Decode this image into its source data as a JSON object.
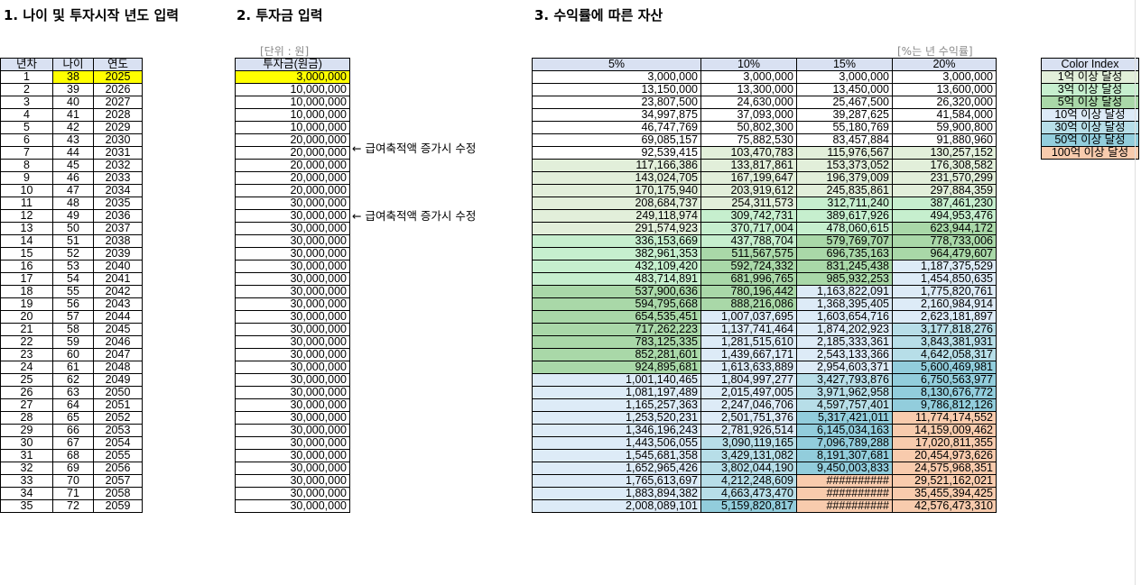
{
  "titles": {
    "s1": "1. 나이 및 투자시작 년도 입력",
    "s2": "2. 투자금 입력",
    "s3": "3. 수익률에 따른 자산"
  },
  "units": {
    "won": "[단위 : 원]",
    "rate": "[%는 년 수익률]"
  },
  "age_table": {
    "headers": [
      "년차",
      "나이",
      "연도"
    ],
    "rows": [
      [
        "1",
        "38",
        "2025"
      ],
      [
        "2",
        "39",
        "2026"
      ],
      [
        "3",
        "40",
        "2027"
      ],
      [
        "4",
        "41",
        "2028"
      ],
      [
        "5",
        "42",
        "2029"
      ],
      [
        "6",
        "43",
        "2030"
      ],
      [
        "7",
        "44",
        "2031"
      ],
      [
        "8",
        "45",
        "2032"
      ],
      [
        "9",
        "46",
        "2033"
      ],
      [
        "10",
        "47",
        "2034"
      ],
      [
        "11",
        "48",
        "2035"
      ],
      [
        "12",
        "49",
        "2036"
      ],
      [
        "13",
        "50",
        "2037"
      ],
      [
        "14",
        "51",
        "2038"
      ],
      [
        "15",
        "52",
        "2039"
      ],
      [
        "16",
        "53",
        "2040"
      ],
      [
        "17",
        "54",
        "2041"
      ],
      [
        "18",
        "55",
        "2042"
      ],
      [
        "19",
        "56",
        "2043"
      ],
      [
        "20",
        "57",
        "2044"
      ],
      [
        "21",
        "58",
        "2045"
      ],
      [
        "22",
        "59",
        "2046"
      ],
      [
        "23",
        "60",
        "2047"
      ],
      [
        "24",
        "61",
        "2048"
      ],
      [
        "25",
        "62",
        "2049"
      ],
      [
        "26",
        "63",
        "2050"
      ],
      [
        "27",
        "64",
        "2051"
      ],
      [
        "28",
        "65",
        "2052"
      ],
      [
        "29",
        "66",
        "2053"
      ],
      [
        "30",
        "67",
        "2054"
      ],
      [
        "31",
        "68",
        "2055"
      ],
      [
        "32",
        "69",
        "2056"
      ],
      [
        "33",
        "70",
        "2057"
      ],
      [
        "34",
        "71",
        "2058"
      ],
      [
        "35",
        "72",
        "2059"
      ]
    ]
  },
  "investment_table": {
    "header": "투자금(원금)",
    "values": [
      "3,000,000",
      "10,000,000",
      "10,000,000",
      "10,000,000",
      "10,000,000",
      "20,000,000",
      "20,000,000",
      "20,000,000",
      "20,000,000",
      "20,000,000",
      "30,000,000",
      "30,000,000",
      "30,000,000",
      "30,000,000",
      "30,000,000",
      "30,000,000",
      "30,000,000",
      "30,000,000",
      "30,000,000",
      "30,000,000",
      "30,000,000",
      "30,000,000",
      "30,000,000",
      "30,000,000",
      "30,000,000",
      "30,000,000",
      "30,000,000",
      "30,000,000",
      "30,000,000",
      "30,000,000",
      "30,000,000",
      "30,000,000",
      "30,000,000",
      "30,000,000",
      "30,000,000"
    ],
    "notes": [
      {
        "row": 6,
        "text": "← 급여축적액 증가시 수정"
      },
      {
        "row": 11,
        "text": "← 급여축적액 증가시 수정"
      }
    ]
  },
  "returns_table": {
    "headers": [
      "5%",
      "10%",
      "15%",
      "20%"
    ],
    "rows": [
      [
        "3,000,000",
        "3,000,000",
        "3,000,000",
        "3,000,000"
      ],
      [
        "13,150,000",
        "13,300,000",
        "13,450,000",
        "13,600,000"
      ],
      [
        "23,807,500",
        "24,630,000",
        "25,467,500",
        "26,320,000"
      ],
      [
        "34,997,875",
        "37,093,000",
        "39,287,625",
        "41,584,000"
      ],
      [
        "46,747,769",
        "50,802,300",
        "55,180,769",
        "59,900,800"
      ],
      [
        "69,085,157",
        "75,882,530",
        "83,457,884",
        "91,880,960"
      ],
      [
        "92,539,415",
        "103,470,783",
        "115,976,567",
        "130,257,152"
      ],
      [
        "117,166,386",
        "133,817,861",
        "153,373,052",
        "176,308,582"
      ],
      [
        "143,024,705",
        "167,199,647",
        "196,379,009",
        "231,570,299"
      ],
      [
        "170,175,940",
        "203,919,612",
        "245,835,861",
        "297,884,359"
      ],
      [
        "208,684,737",
        "254,311,573",
        "312,711,240",
        "387,461,230"
      ],
      [
        "249,118,974",
        "309,742,731",
        "389,617,926",
        "494,953,476"
      ],
      [
        "291,574,923",
        "370,717,004",
        "478,060,615",
        "623,944,172"
      ],
      [
        "336,153,669",
        "437,788,704",
        "579,769,707",
        "778,733,006"
      ],
      [
        "382,961,353",
        "511,567,575",
        "696,735,163",
        "964,479,607"
      ],
      [
        "432,109,420",
        "592,724,332",
        "831,245,438",
        "1,187,375,529"
      ],
      [
        "483,714,891",
        "681,996,765",
        "985,932,253",
        "1,454,850,635"
      ],
      [
        "537,900,636",
        "780,196,442",
        "1,163,822,091",
        "1,775,820,761"
      ],
      [
        "594,795,668",
        "888,216,086",
        "1,368,395,405",
        "2,160,984,914"
      ],
      [
        "654,535,451",
        "1,007,037,695",
        "1,603,654,716",
        "2,623,181,897"
      ],
      [
        "717,262,223",
        "1,137,741,464",
        "1,874,202,923",
        "3,177,818,276"
      ],
      [
        "783,125,335",
        "1,281,515,610",
        "2,185,333,361",
        "3,843,381,931"
      ],
      [
        "852,281,601",
        "1,439,667,171",
        "2,543,133,366",
        "4,642,058,317"
      ],
      [
        "924,895,681",
        "1,613,633,889",
        "2,954,603,371",
        "5,600,469,981"
      ],
      [
        "1,001,140,465",
        "1,804,997,277",
        "3,427,793,876",
        "6,750,563,977"
      ],
      [
        "1,081,197,489",
        "2,015,497,005",
        "3,971,962,958",
        "8,130,676,772"
      ],
      [
        "1,165,257,363",
        "2,247,046,706",
        "4,597,757,401",
        "9,786,812,126"
      ],
      [
        "1,253,520,231",
        "2,501,751,376",
        "5,317,421,011",
        "11,774,174,552"
      ],
      [
        "1,346,196,243",
        "2,781,926,514",
        "6,145,034,163",
        "14,159,009,462"
      ],
      [
        "1,443,506,055",
        "3,090,119,165",
        "7,096,789,288",
        "17,020,811,355"
      ],
      [
        "1,545,681,358",
        "3,429,131,082",
        "8,191,307,681",
        "20,454,973,626"
      ],
      [
        "1,652,965,426",
        "3,802,044,190",
        "9,450,003,833",
        "24,575,968,351"
      ],
      [
        "1,765,613,697",
        "4,212,248,609",
        "##########",
        "29,521,162,021"
      ],
      [
        "1,883,894,382",
        "4,663,473,470",
        "##########",
        "35,455,394,425"
      ],
      [
        "2,008,089,101",
        "5,159,820,817",
        "##########",
        "42,576,473,310"
      ]
    ]
  },
  "color_index": {
    "header": "Color Index",
    "items": [
      {
        "label": "1억 이상 달성",
        "color": "#e2efda"
      },
      {
        "label": "3억 이상 달성",
        "color": "#c6efce"
      },
      {
        "label": "5억 이상 달성",
        "color": "#a9d8a8"
      },
      {
        "label": "10억 이상 달성",
        "color": "#ddebf7"
      },
      {
        "label": "30억 이상 달성",
        "color": "#b7dee8"
      },
      {
        "label": "50억 이상 달성",
        "color": "#92cddc"
      },
      {
        "label": "100억 이상 달성",
        "color": "#f8cbad"
      }
    ]
  }
}
